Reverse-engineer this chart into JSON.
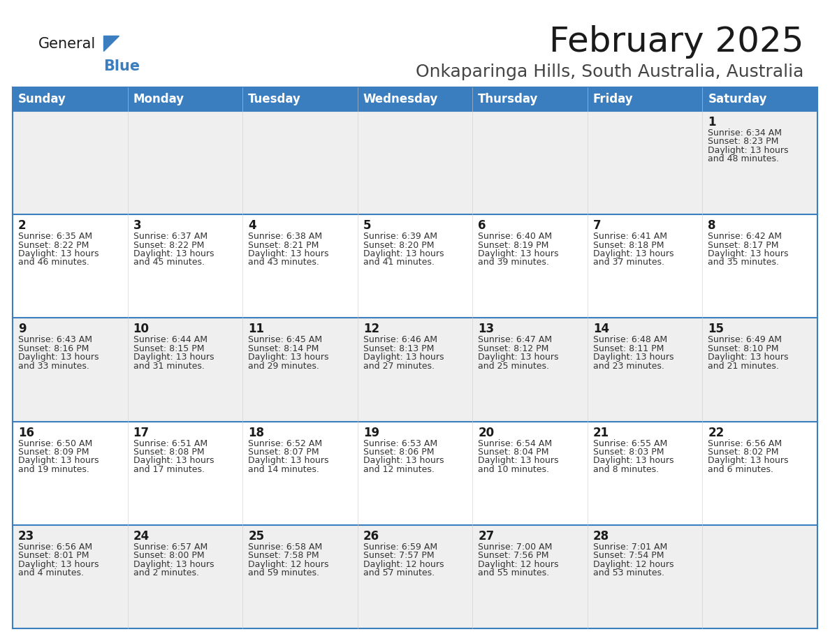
{
  "title": "February 2025",
  "subtitle": "Onkaparinga Hills, South Australia, Australia",
  "header_bg": "#3a7ebf",
  "header_text": "#ffffff",
  "row_bg_light": "#efefef",
  "row_bg_white": "#ffffff",
  "cell_border_color": "#3a7ebf",
  "day_headers": [
    "Sunday",
    "Monday",
    "Tuesday",
    "Wednesday",
    "Thursday",
    "Friday",
    "Saturday"
  ],
  "days": [
    {
      "day": 1,
      "col": 6,
      "row": 0,
      "sunrise": "6:34 AM",
      "sunset": "8:23 PM",
      "daylight_h": "13 hours",
      "daylight_m": "48 minutes."
    },
    {
      "day": 2,
      "col": 0,
      "row": 1,
      "sunrise": "6:35 AM",
      "sunset": "8:22 PM",
      "daylight_h": "13 hours",
      "daylight_m": "46 minutes."
    },
    {
      "day": 3,
      "col": 1,
      "row": 1,
      "sunrise": "6:37 AM",
      "sunset": "8:22 PM",
      "daylight_h": "13 hours",
      "daylight_m": "45 minutes."
    },
    {
      "day": 4,
      "col": 2,
      "row": 1,
      "sunrise": "6:38 AM",
      "sunset": "8:21 PM",
      "daylight_h": "13 hours",
      "daylight_m": "43 minutes."
    },
    {
      "day": 5,
      "col": 3,
      "row": 1,
      "sunrise": "6:39 AM",
      "sunset": "8:20 PM",
      "daylight_h": "13 hours",
      "daylight_m": "41 minutes."
    },
    {
      "day": 6,
      "col": 4,
      "row": 1,
      "sunrise": "6:40 AM",
      "sunset": "8:19 PM",
      "daylight_h": "13 hours",
      "daylight_m": "39 minutes."
    },
    {
      "day": 7,
      "col": 5,
      "row": 1,
      "sunrise": "6:41 AM",
      "sunset": "8:18 PM",
      "daylight_h": "13 hours",
      "daylight_m": "37 minutes."
    },
    {
      "day": 8,
      "col": 6,
      "row": 1,
      "sunrise": "6:42 AM",
      "sunset": "8:17 PM",
      "daylight_h": "13 hours",
      "daylight_m": "35 minutes."
    },
    {
      "day": 9,
      "col": 0,
      "row": 2,
      "sunrise": "6:43 AM",
      "sunset": "8:16 PM",
      "daylight_h": "13 hours",
      "daylight_m": "33 minutes."
    },
    {
      "day": 10,
      "col": 1,
      "row": 2,
      "sunrise": "6:44 AM",
      "sunset": "8:15 PM",
      "daylight_h": "13 hours",
      "daylight_m": "31 minutes."
    },
    {
      "day": 11,
      "col": 2,
      "row": 2,
      "sunrise": "6:45 AM",
      "sunset": "8:14 PM",
      "daylight_h": "13 hours",
      "daylight_m": "29 minutes."
    },
    {
      "day": 12,
      "col": 3,
      "row": 2,
      "sunrise": "6:46 AM",
      "sunset": "8:13 PM",
      "daylight_h": "13 hours",
      "daylight_m": "27 minutes."
    },
    {
      "day": 13,
      "col": 4,
      "row": 2,
      "sunrise": "6:47 AM",
      "sunset": "8:12 PM",
      "daylight_h": "13 hours",
      "daylight_m": "25 minutes."
    },
    {
      "day": 14,
      "col": 5,
      "row": 2,
      "sunrise": "6:48 AM",
      "sunset": "8:11 PM",
      "daylight_h": "13 hours",
      "daylight_m": "23 minutes."
    },
    {
      "day": 15,
      "col": 6,
      "row": 2,
      "sunrise": "6:49 AM",
      "sunset": "8:10 PM",
      "daylight_h": "13 hours",
      "daylight_m": "21 minutes."
    },
    {
      "day": 16,
      "col": 0,
      "row": 3,
      "sunrise": "6:50 AM",
      "sunset": "8:09 PM",
      "daylight_h": "13 hours",
      "daylight_m": "19 minutes."
    },
    {
      "day": 17,
      "col": 1,
      "row": 3,
      "sunrise": "6:51 AM",
      "sunset": "8:08 PM",
      "daylight_h": "13 hours",
      "daylight_m": "17 minutes."
    },
    {
      "day": 18,
      "col": 2,
      "row": 3,
      "sunrise": "6:52 AM",
      "sunset": "8:07 PM",
      "daylight_h": "13 hours",
      "daylight_m": "14 minutes."
    },
    {
      "day": 19,
      "col": 3,
      "row": 3,
      "sunrise": "6:53 AM",
      "sunset": "8:06 PM",
      "daylight_h": "13 hours",
      "daylight_m": "12 minutes."
    },
    {
      "day": 20,
      "col": 4,
      "row": 3,
      "sunrise": "6:54 AM",
      "sunset": "8:04 PM",
      "daylight_h": "13 hours",
      "daylight_m": "10 minutes."
    },
    {
      "day": 21,
      "col": 5,
      "row": 3,
      "sunrise": "6:55 AM",
      "sunset": "8:03 PM",
      "daylight_h": "13 hours",
      "daylight_m": "8 minutes."
    },
    {
      "day": 22,
      "col": 6,
      "row": 3,
      "sunrise": "6:56 AM",
      "sunset": "8:02 PM",
      "daylight_h": "13 hours",
      "daylight_m": "6 minutes."
    },
    {
      "day": 23,
      "col": 0,
      "row": 4,
      "sunrise": "6:56 AM",
      "sunset": "8:01 PM",
      "daylight_h": "13 hours",
      "daylight_m": "4 minutes."
    },
    {
      "day": 24,
      "col": 1,
      "row": 4,
      "sunrise": "6:57 AM",
      "sunset": "8:00 PM",
      "daylight_h": "13 hours",
      "daylight_m": "2 minutes."
    },
    {
      "day": 25,
      "col": 2,
      "row": 4,
      "sunrise": "6:58 AM",
      "sunset": "7:58 PM",
      "daylight_h": "12 hours",
      "daylight_m": "59 minutes."
    },
    {
      "day": 26,
      "col": 3,
      "row": 4,
      "sunrise": "6:59 AM",
      "sunset": "7:57 PM",
      "daylight_h": "12 hours",
      "daylight_m": "57 minutes."
    },
    {
      "day": 27,
      "col": 4,
      "row": 4,
      "sunrise": "7:00 AM",
      "sunset": "7:56 PM",
      "daylight_h": "12 hours",
      "daylight_m": "55 minutes."
    },
    {
      "day": 28,
      "col": 5,
      "row": 4,
      "sunrise": "7:01 AM",
      "sunset": "7:54 PM",
      "daylight_h": "12 hours",
      "daylight_m": "53 minutes."
    }
  ],
  "num_rows": 5,
  "title_fontsize": 36,
  "subtitle_fontsize": 18,
  "header_fontsize": 12,
  "day_num_fontsize": 12,
  "cell_text_fontsize": 9
}
